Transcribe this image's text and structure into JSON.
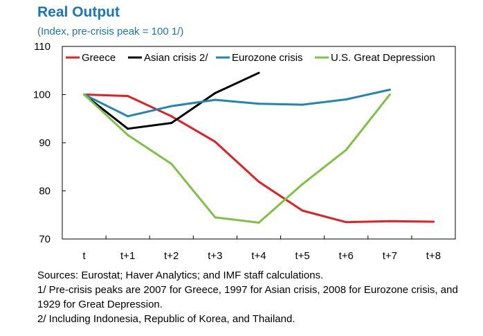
{
  "title": "Real Output",
  "subtitle": "(Index, pre-crisis peak = 100 1/)",
  "chart_data": {
    "type": "line",
    "title": "Real Output",
    "subtitle": "(Index, pre-crisis peak = 100 1/)",
    "categories": [
      "t",
      "t+1",
      "t+2",
      "t+3",
      "t+4",
      "t+5",
      "t+6",
      "t+7",
      "t+8"
    ],
    "ylim": [
      70,
      110
    ],
    "yticks": [
      70,
      80,
      90,
      100,
      110
    ],
    "grid": false,
    "legend_position": "top",
    "series": [
      {
        "name": "Greece",
        "color": "#e31e24",
        "values": [
          100,
          99.7,
          95.5,
          90.2,
          81.9,
          75.9,
          73.5,
          73.7,
          73.6
        ]
      },
      {
        "name": "Asian crisis 2/",
        "color": "#000000",
        "values": [
          100,
          92.9,
          94.1,
          100.3,
          104.5,
          null,
          null,
          null,
          null
        ]
      },
      {
        "name": "Eurozone crisis",
        "color": "#1e86b4",
        "values": [
          100,
          95.5,
          97.6,
          98.9,
          98.1,
          97.9,
          99.0,
          101.0,
          null
        ]
      },
      {
        "name": "U.S. Great Depression",
        "color": "#7dc242",
        "values": [
          100,
          91.6,
          85.6,
          74.5,
          73.4,
          81.4,
          88.5,
          100.0,
          null
        ]
      }
    ]
  },
  "notes": [
    "Sources: Eurostat; Haver Analytics; and IMF staff calculations.",
    "1/ Pre-crisis peaks are 2007 for Greece, 1997 for Asian crisis, 2008 for Eurozone crisis, and 1929 for Great Depression.",
    "2/ Including Indonesia, Republic of Korea, and Thailand."
  ]
}
